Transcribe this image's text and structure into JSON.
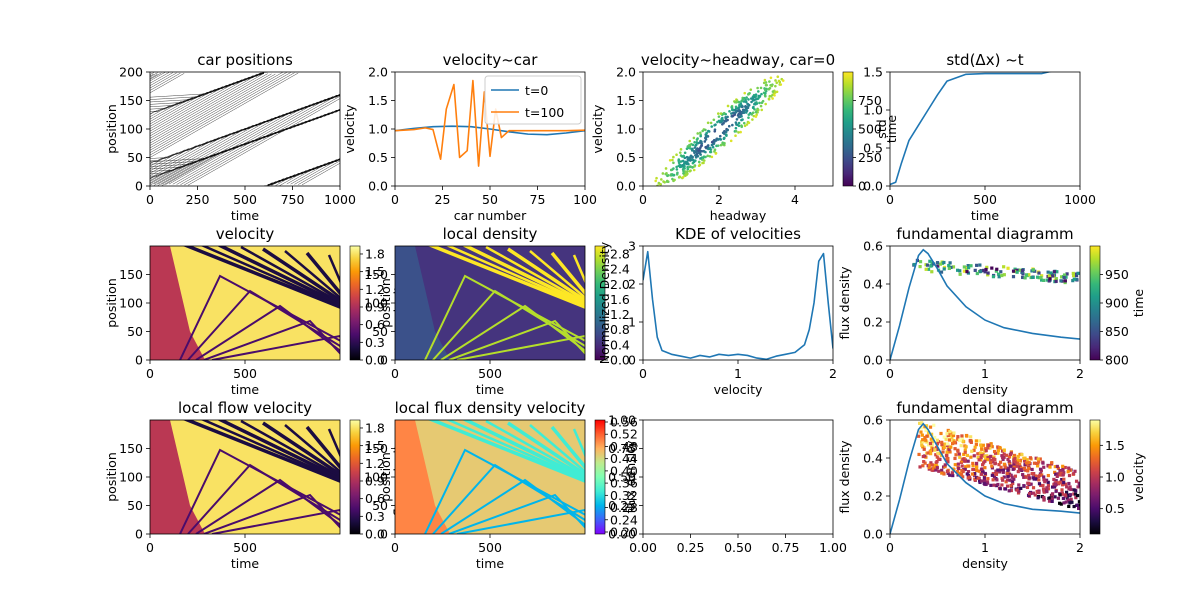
{
  "colors": {
    "blue": "#1f77b4",
    "orange": "#ff7f0e",
    "inferno": [
      "#000004",
      "#1b0c41",
      "#4a0c6b",
      "#781c6d",
      "#a52c60",
      "#cf4446",
      "#ed6925",
      "#fb9b06",
      "#f7d13d",
      "#fcffa4"
    ],
    "viridis": [
      "#440154",
      "#482878",
      "#3e4989",
      "#31688e",
      "#26828e",
      "#1f9e89",
      "#35b779",
      "#6ece58",
      "#b5de2b",
      "#fde725"
    ],
    "rainbow": [
      "#8000ff",
      "#4062fa",
      "#00b5eb",
      "#40ecd4",
      "#80ffb4",
      "#c0eb8d",
      "#ffb360",
      "#ff6030",
      "#ff0000"
    ]
  },
  "panels": [
    {
      "title": "car positions",
      "xlabel": "time",
      "ylabel": "position",
      "xlim": [
        0,
        1000
      ],
      "ylim": [
        0,
        200
      ],
      "xticks": [
        "0",
        "250",
        "500",
        "750",
        "1000"
      ],
      "yticks": [
        "0",
        "50",
        "100",
        "150",
        "200"
      ],
      "kind": "trajectories"
    },
    {
      "title": "velocity~car",
      "xlabel": "car number",
      "ylabel": "velocity",
      "xlim": [
        0,
        100
      ],
      "ylim": [
        0,
        2
      ],
      "xticks": [
        "0",
        "25",
        "50",
        "75",
        "100"
      ],
      "yticks": [
        "0.0",
        "0.5",
        "1.0",
        "1.5",
        "2.0"
      ],
      "kind": "velocity-car",
      "legend": [
        "t=0",
        "t=100"
      ]
    },
    {
      "title": "velocity~headway, car=0",
      "xlabel": "headway",
      "ylabel": "velocity",
      "xlim": [
        0,
        5
      ],
      "ylim": [
        0,
        2
      ],
      "xticks": [
        "0",
        "2",
        "4"
      ],
      "yticks": [
        "0.0",
        "0.5",
        "1.0",
        "1.5",
        "2.0"
      ],
      "kind": "headway-scatter",
      "colorbar": {
        "label": "time",
        "ticks": [
          "0",
          "250",
          "500",
          "750"
        ],
        "cmap": "viridis"
      },
      "overlay_label": "std"
    },
    {
      "title": "std(Δx) ~t",
      "xlabel": "time",
      "ylabel": "",
      "xlim": [
        0,
        1000
      ],
      "ylim": [
        0,
        1.5
      ],
      "xticks": [
        "0",
        "500",
        "1000"
      ],
      "yticks": [
        "0.0",
        "0.5",
        "1.0",
        "1.5"
      ],
      "kind": "std"
    },
    {
      "title": "velocity",
      "xlabel": "time",
      "ylabel": "position",
      "xlim": [
        0,
        1000
      ],
      "ylim": [
        0,
        200
      ],
      "xticks": [
        "0",
        "500"
      ],
      "yticks": [
        "0",
        "50",
        "100",
        "150"
      ],
      "kind": "heatmap-inferno",
      "colorbar": {
        "label": "velocity",
        "ticks": [
          "0.0",
          "0.3",
          "0.6",
          "0.9",
          "1.2",
          "1.5",
          "1.8"
        ],
        "cmap": "inferno"
      },
      "overlay_label": "position"
    },
    {
      "title": "local density",
      "xlabel": "time",
      "ylabel": "",
      "xlim": [
        0,
        1000
      ],
      "ylim": [
        0,
        200
      ],
      "xticks": [
        "0",
        "500"
      ],
      "yticks": [
        "0",
        "50",
        "100",
        "150"
      ],
      "kind": "heatmap-viridis",
      "colorbar": {
        "label": "",
        "ticks": [
          "0.0",
          "0.4",
          "0.8",
          "1.2",
          "1.6",
          "2.0",
          "2.4",
          "2.8"
        ],
        "cmap": "viridis"
      }
    },
    {
      "title": "KDE of velocities",
      "xlabel": "velocity",
      "ylabel": "Normalized Density",
      "xlim": [
        0,
        2
      ],
      "ylim": [
        0,
        3
      ],
      "xticks": [
        "0",
        "1",
        "2"
      ],
      "yticks": [
        "0",
        "1",
        "2",
        "3"
      ],
      "kind": "kde"
    },
    {
      "title": "fundamental diagramm",
      "xlabel": "density",
      "ylabel": "flux density",
      "xlim": [
        0,
        2
      ],
      "ylim": [
        0,
        0.6
      ],
      "xticks": [
        "0",
        "1",
        "2"
      ],
      "yticks": [
        "0.0",
        "0.2",
        "0.4",
        "0.6"
      ],
      "kind": "fd-viridis",
      "colorbar": {
        "label": "time",
        "ticks": [
          "800",
          "850",
          "900",
          "950"
        ],
        "cmap": "viridis"
      }
    },
    {
      "title": "local flow velocity",
      "xlabel": "time",
      "ylabel": "position",
      "xlim": [
        0,
        1000
      ],
      "ylim": [
        0,
        200
      ],
      "xticks": [
        "0",
        "500"
      ],
      "yticks": [
        "0",
        "50",
        "100",
        "150"
      ],
      "kind": "heatmap-inferno",
      "colorbar": {
        "label": "flow velocity",
        "ticks": [
          "0.0",
          "0.3",
          "0.6",
          "0.9",
          "1.2",
          "1.5",
          "1.8"
        ],
        "cmap": "inferno"
      },
      "overlay_label": "position"
    },
    {
      "title": "local flux density velocity",
      "xlabel": "time",
      "ylabel": "",
      "xlim": [
        0,
        1000
      ],
      "ylim": [
        0,
        200
      ],
      "xticks": [
        "0",
        "500"
      ],
      "yticks": [
        "0",
        "50",
        "100",
        "150"
      ],
      "kind": "heatmap-rainbow",
      "colorbar": {
        "label": "",
        "ticks": [
          "0.20",
          "0.24",
          "0.28",
          "0.32",
          "0.36",
          "0.40",
          "0.44",
          "0.48",
          "0.52",
          "0.56"
        ],
        "cmap": "rainbow"
      },
      "overlay_label": "flux density"
    },
    {
      "title": "",
      "xlabel": "",
      "ylabel": "",
      "xlim": [
        0,
        1
      ],
      "ylim": [
        0,
        1
      ],
      "xticks": [
        "0.00",
        "0.25",
        "0.50",
        "0.75",
        "1.00"
      ],
      "yticks": [
        "0.00",
        "0.25",
        "0.50",
        "0.75",
        "1.00"
      ],
      "kind": "empty"
    },
    {
      "title": "fundamental diagramm",
      "xlabel": "density",
      "ylabel": "flux density",
      "xlim": [
        0,
        2
      ],
      "ylim": [
        0,
        0.6
      ],
      "xticks": [
        "0",
        "1",
        "2"
      ],
      "yticks": [
        "0.0",
        "0.2",
        "0.4",
        "0.6"
      ],
      "kind": "fd-inferno",
      "colorbar": {
        "label": "velocity",
        "ticks": [
          "0.5",
          "1.0",
          "1.5"
        ],
        "cmap": "inferno"
      }
    }
  ],
  "chart_data": [
    {
      "type": "line",
      "title": "car positions",
      "xlabel": "time",
      "ylabel": "position",
      "xlim": [
        0,
        1000
      ],
      "ylim": [
        0,
        200
      ],
      "grid": false,
      "series": [
        {
          "values": []
        }
      ]
    },
    {
      "type": "line",
      "title": "velocity~car",
      "xlabel": "car number",
      "ylabel": "velocity",
      "xlim": [
        0,
        100
      ],
      "ylim": [
        0,
        2
      ],
      "legend": "top-right",
      "series": [
        {
          "name": "t=0",
          "x": [
            0,
            10,
            20,
            30,
            40,
            50,
            60,
            70,
            80,
            90,
            100
          ],
          "values": [
            0.97,
            1.01,
            1.04,
            1.05,
            1.04,
            1.0,
            0.95,
            0.91,
            0.9,
            0.93,
            0.97
          ]
        },
        {
          "name": "t=100",
          "x": [
            0,
            10,
            16,
            20,
            24,
            27,
            31,
            34,
            38,
            41,
            44,
            47,
            50,
            53,
            56,
            60,
            70,
            80,
            90,
            100
          ],
          "values": [
            0.97,
            0.99,
            1.02,
            0.99,
            0.47,
            1.35,
            1.78,
            0.5,
            0.62,
            1.85,
            0.35,
            1.65,
            0.52,
            1.35,
            0.85,
            0.97,
            0.97,
            0.97,
            0.97,
            0.98
          ]
        }
      ]
    },
    {
      "type": "scatter",
      "title": "velocity~headway, car=0",
      "xlabel": "headway",
      "ylabel": "velocity",
      "xlim": [
        0,
        5
      ],
      "ylim": [
        0,
        2
      ],
      "colorbar": {
        "label": "time",
        "range": [
          0,
          1000
        ]
      },
      "series": [
        {
          "x": [
            0.2,
            0.8,
            1.3,
            1.9,
            2.4,
            2.9,
            3.3,
            3.7,
            3.5,
            3.0,
            2.5,
            2.0,
            1.5,
            1.0,
            0.5
          ],
          "values": [
            0.0,
            0.25,
            0.6,
            1.0,
            1.35,
            1.65,
            1.8,
            1.9,
            1.6,
            1.2,
            0.85,
            0.5,
            0.25,
            0.08,
            0.0
          ]
        }
      ]
    },
    {
      "type": "line",
      "title": "std(Δx) ~t",
      "xlabel": "time",
      "xlim": [
        0,
        1000
      ],
      "ylim": [
        0,
        1.5
      ],
      "series": [
        {
          "x": [
            0,
            30,
            60,
            100,
            150,
            200,
            250,
            300,
            400,
            500,
            600,
            700,
            800,
            850,
            1000
          ],
          "values": [
            0.02,
            0.05,
            0.3,
            0.6,
            0.8,
            1.0,
            1.2,
            1.38,
            1.47,
            1.48,
            1.48,
            1.48,
            1.48,
            1.51,
            1.52
          ]
        }
      ]
    },
    {
      "type": "heatmap",
      "title": "velocity",
      "xlabel": "time",
      "ylabel": "position",
      "xlim": [
        0,
        1000
      ],
      "ylim": [
        0,
        200
      ],
      "colorbar": {
        "label": "velocity",
        "range": [
          0,
          1.9
        ]
      }
    },
    {
      "type": "heatmap",
      "title": "local density",
      "xlabel": "time",
      "xlim": [
        0,
        1000
      ],
      "ylim": [
        0,
        200
      ],
      "colorbar": {
        "range": [
          0,
          2.9
        ]
      }
    },
    {
      "type": "line",
      "title": "KDE of velocities",
      "xlabel": "velocity",
      "ylabel": "Normalized Density",
      "xlim": [
        0,
        2
      ],
      "ylim": [
        0,
        3
      ],
      "series": [
        {
          "x": [
            0.0,
            0.05,
            0.1,
            0.15,
            0.2,
            0.3,
            0.4,
            0.5,
            0.6,
            0.7,
            0.8,
            0.9,
            1.0,
            1.1,
            1.2,
            1.3,
            1.4,
            1.5,
            1.6,
            1.7,
            1.75,
            1.8,
            1.85,
            1.9,
            1.95,
            2.0
          ],
          "values": [
            2.1,
            2.85,
            1.6,
            0.6,
            0.25,
            0.15,
            0.1,
            0.05,
            0.12,
            0.08,
            0.15,
            0.12,
            0.15,
            0.12,
            0.05,
            0.02,
            0.1,
            0.15,
            0.2,
            0.4,
            0.8,
            1.5,
            2.6,
            2.8,
            1.5,
            0.3
          ]
        }
      ]
    },
    {
      "type": "scatter",
      "title": "fundamental diagramm",
      "xlabel": "density",
      "ylabel": "flux density",
      "xlim": [
        0,
        2
      ],
      "ylim": [
        0,
        0.6
      ],
      "colorbar": {
        "label": "time",
        "range": [
          800,
          1000
        ]
      },
      "series": [
        {
          "x": [
            0,
            0.1,
            0.2,
            0.3,
            0.35,
            0.4,
            0.5,
            0.6,
            0.8,
            1.0,
            1.2,
            1.5,
            1.8,
            2.0
          ],
          "values": [
            0,
            0.18,
            0.38,
            0.55,
            0.58,
            0.56,
            0.48,
            0.39,
            0.28,
            0.21,
            0.17,
            0.14,
            0.12,
            0.11
          ]
        }
      ]
    },
    {
      "type": "heatmap",
      "title": "local flow velocity",
      "xlabel": "time",
      "ylabel": "position",
      "xlim": [
        0,
        1000
      ],
      "ylim": [
        0,
        200
      ],
      "colorbar": {
        "label": "flow velocity",
        "range": [
          0,
          1.9
        ]
      }
    },
    {
      "type": "heatmap",
      "title": "local flux density velocity",
      "xlabel": "time",
      "xlim": [
        0,
        1000
      ],
      "ylim": [
        0,
        200
      ],
      "colorbar": {
        "range": [
          0.2,
          0.56
        ]
      }
    },
    {
      "type": "line",
      "title": "",
      "xlim": [
        0,
        1
      ],
      "ylim": [
        0,
        1
      ],
      "series": []
    },
    {
      "type": "scatter",
      "title": "fundamental diagramm",
      "xlabel": "density",
      "ylabel": "flux density",
      "xlim": [
        0,
        2
      ],
      "ylim": [
        0,
        0.6
      ],
      "colorbar": {
        "label": "velocity",
        "range": [
          0.1,
          1.9
        ]
      },
      "series": [
        {
          "x": [
            0,
            0.1,
            0.2,
            0.3,
            0.35,
            0.4,
            0.5,
            0.6,
            0.8,
            1.0,
            1.2,
            1.5,
            1.8,
            2.0
          ],
          "values": [
            0,
            0.18,
            0.38,
            0.55,
            0.58,
            0.55,
            0.46,
            0.37,
            0.27,
            0.2,
            0.16,
            0.13,
            0.12,
            0.11
          ]
        }
      ]
    }
  ]
}
